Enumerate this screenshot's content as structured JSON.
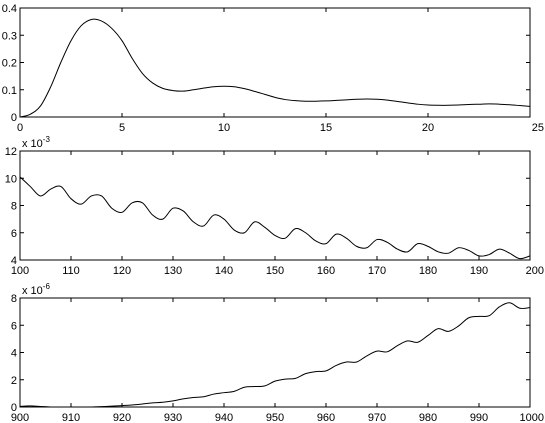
{
  "chart_data": [
    {
      "type": "line",
      "title": "",
      "xlabel": "",
      "ylabel": "",
      "xlim": [
        0,
        25
      ],
      "ylim": [
        0,
        0.4
      ],
      "grid": false,
      "legend": "none",
      "xticks": [
        "0",
        "5",
        "10",
        "15",
        "20",
        "25"
      ],
      "yticks": [
        "0",
        "0.1",
        "0.2",
        "0.3",
        "0.4"
      ],
      "multiplier": null,
      "series": [
        {
          "x": [
            0,
            0.5,
            1,
            1.5,
            2,
            2.5,
            3,
            3.5,
            4,
            4.5,
            5,
            5.5,
            6,
            6.5,
            7,
            7.5,
            8,
            8.5,
            9,
            9.5,
            10,
            10.5,
            11,
            11.5,
            12,
            12.5,
            13,
            13.5,
            14,
            14.5,
            15,
            15.5,
            16,
            16.5,
            17,
            17.5,
            18,
            18.5,
            19,
            19.5,
            20,
            20.5,
            21,
            21.5,
            22,
            22.5,
            23,
            23.5,
            24,
            24.5,
            25
          ],
          "y": [
            0,
            0.01,
            0.04,
            0.11,
            0.2,
            0.28,
            0.335,
            0.358,
            0.352,
            0.325,
            0.28,
            0.215,
            0.16,
            0.125,
            0.105,
            0.097,
            0.095,
            0.1,
            0.106,
            0.111,
            0.113,
            0.111,
            0.104,
            0.094,
            0.083,
            0.072,
            0.064,
            0.06,
            0.058,
            0.058,
            0.059,
            0.061,
            0.063,
            0.065,
            0.066,
            0.065,
            0.062,
            0.057,
            0.052,
            0.047,
            0.044,
            0.043,
            0.043,
            0.044,
            0.046,
            0.047,
            0.048,
            0.047,
            0.045,
            0.042,
            0.039
          ]
        }
      ]
    },
    {
      "type": "line",
      "title": "",
      "xlabel": "",
      "ylabel": "",
      "xlim": [
        100,
        200
      ],
      "ylim": [
        4,
        12
      ],
      "grid": false,
      "legend": "none",
      "xticks": [
        "100",
        "110",
        "120",
        "130",
        "140",
        "150",
        "160",
        "170",
        "180",
        "190",
        "200"
      ],
      "yticks": [
        "4",
        "6",
        "8",
        "10",
        "12"
      ],
      "multiplier": "-3",
      "series": [
        {
          "x": [
            100,
            102,
            104,
            106,
            108,
            110,
            112,
            114,
            116,
            118,
            120,
            122,
            124,
            126,
            128,
            130,
            132,
            134,
            136,
            138,
            140,
            142,
            144,
            146,
            148,
            150,
            152,
            154,
            156,
            158,
            160,
            162,
            164,
            166,
            168,
            170,
            172,
            174,
            176,
            178,
            180,
            182,
            184,
            186,
            188,
            190,
            192,
            194,
            196,
            198,
            200
          ],
          "y": [
            10.1,
            9.4,
            8.7,
            9.2,
            9.4,
            8.5,
            8.1,
            8.7,
            8.7,
            7.8,
            7.5,
            8.2,
            8.2,
            7.3,
            7.0,
            7.8,
            7.6,
            6.8,
            6.5,
            7.3,
            7.0,
            6.2,
            6.0,
            6.8,
            6.4,
            5.8,
            5.6,
            6.3,
            6.0,
            5.4,
            5.2,
            5.9,
            5.6,
            5.0,
            4.9,
            5.5,
            5.3,
            4.8,
            4.6,
            5.2,
            5.0,
            4.6,
            4.5,
            4.9,
            4.7,
            4.3,
            4.4,
            4.8,
            4.5,
            4.1,
            4.3
          ]
        }
      ]
    },
    {
      "type": "line",
      "title": "",
      "xlabel": "",
      "ylabel": "",
      "xlim": [
        900,
        1000
      ],
      "ylim": [
        0,
        8
      ],
      "grid": false,
      "legend": "none",
      "xticks": [
        "900",
        "910",
        "920",
        "930",
        "940",
        "950",
        "960",
        "970",
        "980",
        "990",
        "1000"
      ],
      "yticks": [
        "0",
        "2",
        "4",
        "6",
        "8"
      ],
      "multiplier": "-6",
      "series": [
        {
          "x": [
            900,
            902,
            904,
            906,
            908,
            910,
            912,
            914,
            916,
            918,
            920,
            922,
            924,
            926,
            928,
            930,
            932,
            934,
            936,
            938,
            940,
            942,
            944,
            946,
            948,
            950,
            952,
            954,
            956,
            958,
            960,
            962,
            964,
            966,
            968,
            970,
            972,
            974,
            976,
            978,
            980,
            982,
            984,
            986,
            988,
            990,
            992,
            994,
            996,
            998,
            1000
          ],
          "y": [
            0.05,
            0.08,
            0.04,
            0.0,
            -0.05,
            -0.07,
            -0.04,
            0.0,
            0.03,
            0.06,
            0.1,
            0.15,
            0.22,
            0.3,
            0.35,
            0.45,
            0.6,
            0.7,
            0.75,
            0.95,
            1.05,
            1.15,
            1.45,
            1.5,
            1.55,
            1.9,
            2.05,
            2.1,
            2.45,
            2.6,
            2.65,
            3.05,
            3.3,
            3.3,
            3.75,
            4.1,
            4.05,
            4.5,
            4.85,
            4.75,
            5.25,
            5.75,
            5.55,
            5.95,
            6.55,
            6.65,
            6.7,
            7.35,
            7.65,
            7.25,
            7.3
          ]
        }
      ]
    }
  ]
}
